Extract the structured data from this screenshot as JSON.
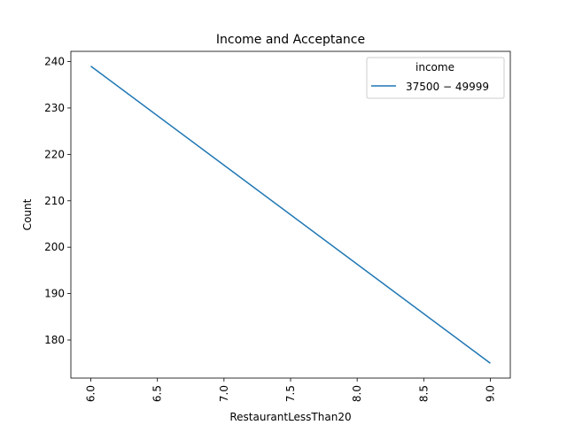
{
  "chart_data": {
    "type": "line",
    "title": "Income and Acceptance",
    "xlabel": "RestaurantLessThan20",
    "ylabel": "Count",
    "x": [
      6.0,
      9.0
    ],
    "series": [
      {
        "name": "$37500 - $49999",
        "values": [
          239,
          175
        ],
        "color": "#1f77b4"
      }
    ],
    "xlim": [
      5.85,
      9.15
    ],
    "ylim": [
      171.8,
      242.2
    ],
    "xticks": [
      "6.0",
      "6.5",
      "7.0",
      "7.5",
      "8.0",
      "8.5",
      "9.0"
    ],
    "yticks": [
      "180",
      "190",
      "200",
      "210",
      "220",
      "230",
      "240"
    ],
    "xtick_rotation": "vertical",
    "grid": false,
    "legend": {
      "title": "income",
      "position": "top-right"
    }
  }
}
